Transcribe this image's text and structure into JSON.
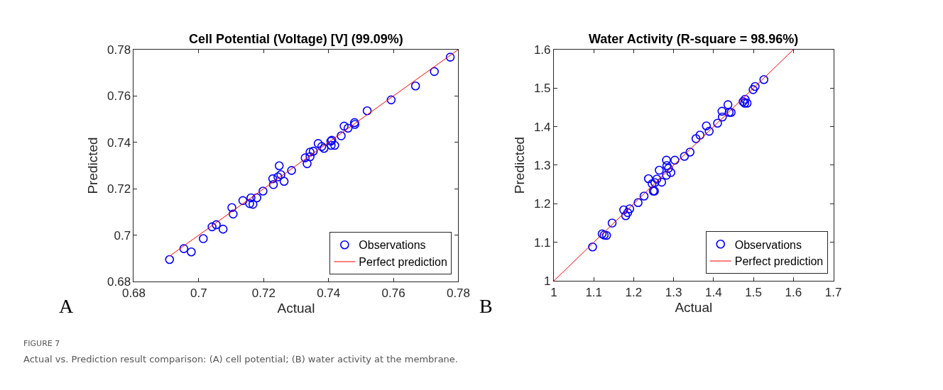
{
  "chart_data": [
    {
      "type": "scatter",
      "title": "Cell Potential (Voltage) [V] (99.09%)",
      "xlabel": "Actual",
      "ylabel": "Predicted",
      "xlim": [
        0.68,
        0.78
      ],
      "xticks": [
        0.68,
        0.7,
        0.72,
        0.74,
        0.76,
        0.78
      ],
      "ylim": [
        0.68,
        0.78
      ],
      "yticks": [
        0.68,
        0.7,
        0.72,
        0.74,
        0.76,
        0.78
      ],
      "grid": false,
      "legend": "bottom right",
      "annotations": [
        "A",
        "FIGURE 7",
        "Actual vs. Prediction result comparison: (A) cell potential; (B) water activity at the membrane."
      ],
      "series": [
        {
          "name": "Observations",
          "marker": "circle",
          "color": "#0000ff",
          "x": [
            0.691,
            0.6954,
            0.6977,
            0.7014,
            0.7041,
            0.7054,
            0.7075,
            0.7102,
            0.7106,
            0.7136,
            0.7157,
            0.7161,
            0.7167,
            0.7179,
            0.7198,
            0.7228,
            0.723,
            0.7248,
            0.7244,
            0.7253,
            0.7263,
            0.7286,
            0.7328,
            0.7334,
            0.7343,
            0.7343,
            0.7353,
            0.7368,
            0.7379,
            0.7386,
            0.7407,
            0.741,
            0.7408,
            0.7419,
            0.7439,
            0.7448,
            0.746,
            0.748,
            0.7481,
            0.7519,
            0.7593,
            0.7668,
            0.7726,
            0.7775
          ],
          "values": [
            0.6895,
            0.6942,
            0.6928,
            0.6985,
            0.7036,
            0.7045,
            0.7026,
            0.7119,
            0.7091,
            0.7149,
            0.7136,
            0.7161,
            0.7133,
            0.7161,
            0.719,
            0.7243,
            0.7218,
            0.7299,
            0.7251,
            0.7261,
            0.7232,
            0.7279,
            0.7333,
            0.7308,
            0.7338,
            0.7358,
            0.7362,
            0.7395,
            0.7382,
            0.7374,
            0.7405,
            0.7409,
            0.7387,
            0.7387,
            0.7428,
            0.747,
            0.7461,
            0.7485,
            0.7477,
            0.7536,
            0.7583,
            0.7643,
            0.7705,
            0.7767
          ]
        },
        {
          "name": "Perfect prediction",
          "type": "line",
          "line_style": "solid",
          "color": "#ff0000",
          "x": [
            0.691,
            0.78
          ],
          "values": [
            0.691,
            0.78
          ]
        }
      ]
    },
    {
      "type": "scatter",
      "title": "Water Activity (R-square = 98.96%)",
      "xlabel": "Actual",
      "ylabel": "Predicted",
      "xlim": [
        1,
        1.7
      ],
      "xticks": [
        1,
        1.1,
        1.2,
        1.3,
        1.4,
        1.5,
        1.6,
        1.7
      ],
      "ylim": [
        1,
        1.6
      ],
      "yticks": [
        1,
        1.1,
        1.2,
        1.3,
        1.4,
        1.5,
        1.6
      ],
      "grid": false,
      "legend": "bottom right",
      "annotations": [
        "B"
      ],
      "series": [
        {
          "name": "Observations",
          "marker": "circle",
          "color": "#0000ff",
          "x": [
            1.097,
            1.121,
            1.126,
            1.132,
            1.146,
            1.175,
            1.18,
            1.185,
            1.19,
            1.211,
            1.226,
            1.237,
            1.246,
            1.249,
            1.252,
            1.253,
            1.258,
            1.264,
            1.27,
            1.282,
            1.282,
            1.283,
            1.287,
            1.293,
            1.303,
            1.327,
            1.341,
            1.356,
            1.366,
            1.382,
            1.389,
            1.41,
            1.421,
            1.422,
            1.436,
            1.439,
            1.444,
            1.474,
            1.479,
            1.478,
            1.484,
            1.499,
            1.504,
            1.526
          ],
          "values": [
            1.088,
            1.122,
            1.119,
            1.118,
            1.15,
            1.184,
            1.169,
            1.177,
            1.187,
            1.203,
            1.22,
            1.265,
            1.252,
            1.233,
            1.233,
            1.255,
            1.264,
            1.287,
            1.256,
            1.313,
            1.274,
            1.299,
            1.292,
            1.281,
            1.313,
            1.323,
            1.334,
            1.369,
            1.378,
            1.402,
            1.388,
            1.409,
            1.44,
            1.425,
            1.457,
            1.437,
            1.437,
            1.465,
            1.471,
            1.461,
            1.461,
            1.496,
            1.504,
            1.522
          ]
        },
        {
          "name": "Perfect prediction",
          "type": "line",
          "line_style": "solid",
          "color": "#ff0000",
          "x": [
            1,
            1.6
          ],
          "values": [
            1,
            1.6
          ]
        }
      ]
    }
  ]
}
